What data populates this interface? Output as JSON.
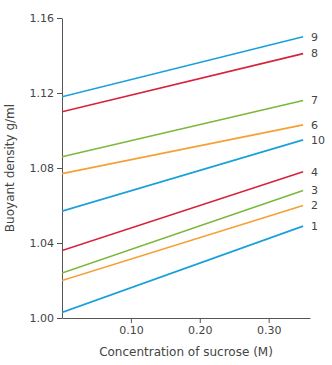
{
  "chart_data": {
    "type": "line",
    "x_label": "Concentration of sucrose (M)",
    "y_label": "Buoyant density g/ml",
    "x": [
      0,
      0.35
    ],
    "series": [
      {
        "name": "1",
        "color": "#1aa0d8",
        "values": [
          1.003,
          1.049
        ]
      },
      {
        "name": "2",
        "color": "#f5a034",
        "values": [
          1.02,
          1.06
        ]
      },
      {
        "name": "3",
        "color": "#7ab83a",
        "values": [
          1.024,
          1.068
        ]
      },
      {
        "name": "4",
        "color": "#d7213b",
        "values": [
          1.036,
          1.078
        ]
      },
      {
        "name": "10",
        "color": "#1aa0d8",
        "values": [
          1.057,
          1.095
        ]
      },
      {
        "name": "6",
        "color": "#f5a034",
        "values": [
          1.077,
          1.103
        ]
      },
      {
        "name": "7",
        "color": "#7ab83a",
        "values": [
          1.086,
          1.116
        ]
      },
      {
        "name": "8",
        "color": "#d7213b",
        "values": [
          1.11,
          1.141
        ]
      },
      {
        "name": "9",
        "color": "#1aa0d8",
        "values": [
          1.118,
          1.15
        ]
      }
    ],
    "xlim": [
      0,
      0.36
    ],
    "xticks": [
      {
        "value": 0.1,
        "label": "0.10"
      },
      {
        "value": 0.2,
        "label": "0.20"
      },
      {
        "value": 0.3,
        "label": "0.30"
      }
    ],
    "ylim": [
      1.0,
      1.16
    ],
    "yticks": [
      {
        "value": 1.0,
        "label": "1.00"
      },
      1.04,
      1.08,
      1.12,
      1.16
    ],
    "grid": false
  }
}
